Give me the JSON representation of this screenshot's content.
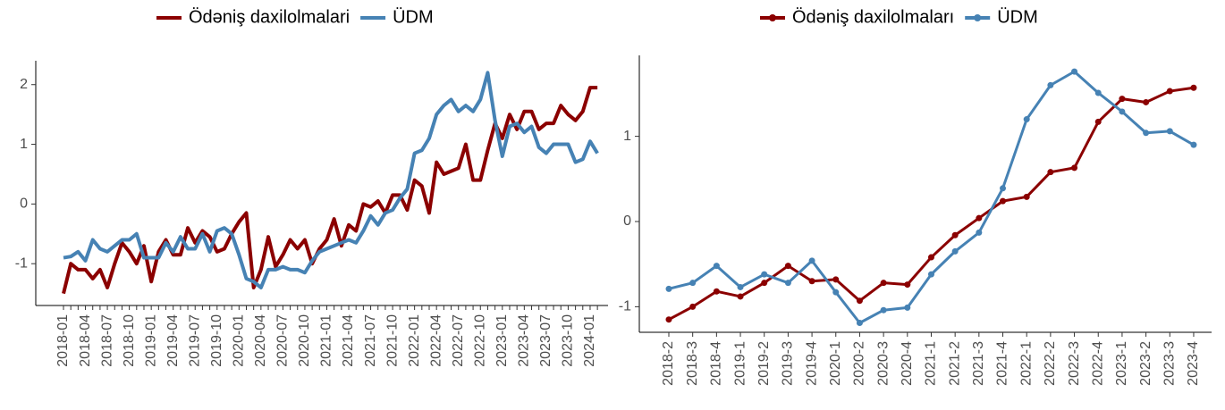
{
  "chart_data": [
    {
      "type": "line",
      "legend": "top",
      "categories": [
        "2018-01",
        null,
        null,
        "2018-04",
        null,
        null,
        "2018-07",
        null,
        null,
        "2018-10",
        null,
        null,
        "2019-01",
        null,
        null,
        "2019-04",
        null,
        null,
        "2019-07",
        null,
        null,
        "2019-10",
        null,
        null,
        "2020-01",
        null,
        null,
        "2020-04",
        null,
        null,
        "2020-07",
        null,
        null,
        "2020-10",
        null,
        null,
        "2021-01",
        null,
        null,
        "2021-04",
        null,
        null,
        "2021-07",
        null,
        null,
        "2021-10",
        null,
        null,
        "2022-01",
        null,
        null,
        "2022-04",
        null,
        null,
        "2022-07",
        null,
        null,
        "2022-10",
        null,
        null,
        "2023-01",
        null,
        null,
        "2023-04",
        null,
        null,
        "2023-07",
        null,
        null,
        "2023-10",
        null,
        null,
        "2024-01",
        null
      ],
      "series": [
        {
          "name": "Ödəniş daxilolmalari",
          "color": "#8b0000",
          "values": [
            -1.5,
            -1.0,
            -1.1,
            -1.1,
            -1.25,
            -1.1,
            -1.4,
            -1.0,
            -0.65,
            -0.8,
            -1.0,
            -0.7,
            -1.3,
            -0.8,
            -0.6,
            -0.85,
            -0.85,
            -0.4,
            -0.65,
            -0.45,
            -0.55,
            -0.8,
            -0.75,
            -0.5,
            -0.3,
            -0.15,
            -1.4,
            -1.1,
            -0.55,
            -1.05,
            -0.85,
            -0.6,
            -0.75,
            -0.6,
            -1.0,
            -0.75,
            -0.6,
            -0.25,
            -0.7,
            -0.35,
            -0.45,
            0.0,
            -0.05,
            0.05,
            -0.15,
            0.15,
            0.15,
            -0.1,
            0.4,
            0.3,
            -0.15,
            0.7,
            0.5,
            0.55,
            0.6,
            1.0,
            0.4,
            0.4,
            0.9,
            1.35,
            1.1,
            1.5,
            1.25,
            1.55,
            1.55,
            1.25,
            1.35,
            1.35,
            1.65,
            1.5,
            1.4,
            1.55,
            1.95,
            1.95
          ]
        },
        {
          "name": "ÜDM",
          "color": "#4682b4",
          "values": [
            -0.9,
            -0.88,
            -0.8,
            -0.95,
            -0.6,
            -0.75,
            -0.8,
            -0.7,
            -0.6,
            -0.6,
            -0.5,
            -0.9,
            -0.9,
            -0.9,
            -0.65,
            -0.8,
            -0.55,
            -0.75,
            -0.75,
            -0.5,
            -0.8,
            -0.45,
            -0.4,
            -0.5,
            -0.85,
            -1.25,
            -1.3,
            -1.4,
            -1.1,
            -1.1,
            -1.05,
            -1.1,
            -1.1,
            -1.15,
            -0.95,
            -0.8,
            -0.75,
            -0.7,
            -0.65,
            -0.6,
            -0.65,
            -0.45,
            -0.2,
            -0.35,
            -0.15,
            -0.1,
            0.1,
            0.25,
            0.85,
            0.9,
            1.1,
            1.5,
            1.65,
            1.75,
            1.55,
            1.65,
            1.55,
            1.75,
            2.2,
            1.4,
            0.8,
            1.3,
            1.35,
            1.2,
            1.3,
            0.95,
            0.85,
            1.0,
            1.0,
            1.0,
            0.7,
            0.75,
            1.05,
            0.85
          ]
        }
      ],
      "ylim": [
        -1.7,
        2.4
      ],
      "yticks": [
        -1,
        0,
        1,
        2
      ]
    },
    {
      "type": "line",
      "legend": "top",
      "markers": true,
      "categories": [
        "2018-2",
        "2018-3",
        "2018-4",
        "2019-1",
        "2019-2",
        "2019-3",
        "2019-4",
        "2020-1",
        "2020-2",
        "2020-3",
        "2020-4",
        "2021-1",
        "2021-2",
        "2021-3",
        "2021-4",
        "2022-1",
        "2022-2",
        "2022-3",
        "2022-4",
        "2023-1",
        "2023-2",
        "2023-3",
        "2023-4"
      ],
      "series": [
        {
          "name": "Ödəniş daxilolmaları",
          "color": "#8b0000",
          "values": [
            -1.15,
            -1.0,
            -0.82,
            -0.88,
            -0.72,
            -0.52,
            -0.7,
            -0.68,
            -0.93,
            -0.72,
            -0.74,
            -0.42,
            -0.16,
            0.04,
            0.24,
            0.29,
            0.58,
            0.63,
            1.17,
            1.44,
            1.4,
            1.53,
            1.57
          ]
        },
        {
          "name": "ÜDM",
          "color": "#4682b4",
          "values": [
            -0.79,
            -0.72,
            -0.52,
            -0.77,
            -0.62,
            -0.72,
            -0.46,
            -0.83,
            -1.19,
            -1.04,
            -1.01,
            -0.62,
            -0.35,
            -0.13,
            0.39,
            1.2,
            1.6,
            1.76,
            1.51,
            1.29,
            1.04,
            1.06,
            0.9
          ]
        }
      ],
      "ylim": [
        -1.3,
        1.95
      ],
      "yticks": [
        -1,
        0,
        1
      ]
    }
  ]
}
